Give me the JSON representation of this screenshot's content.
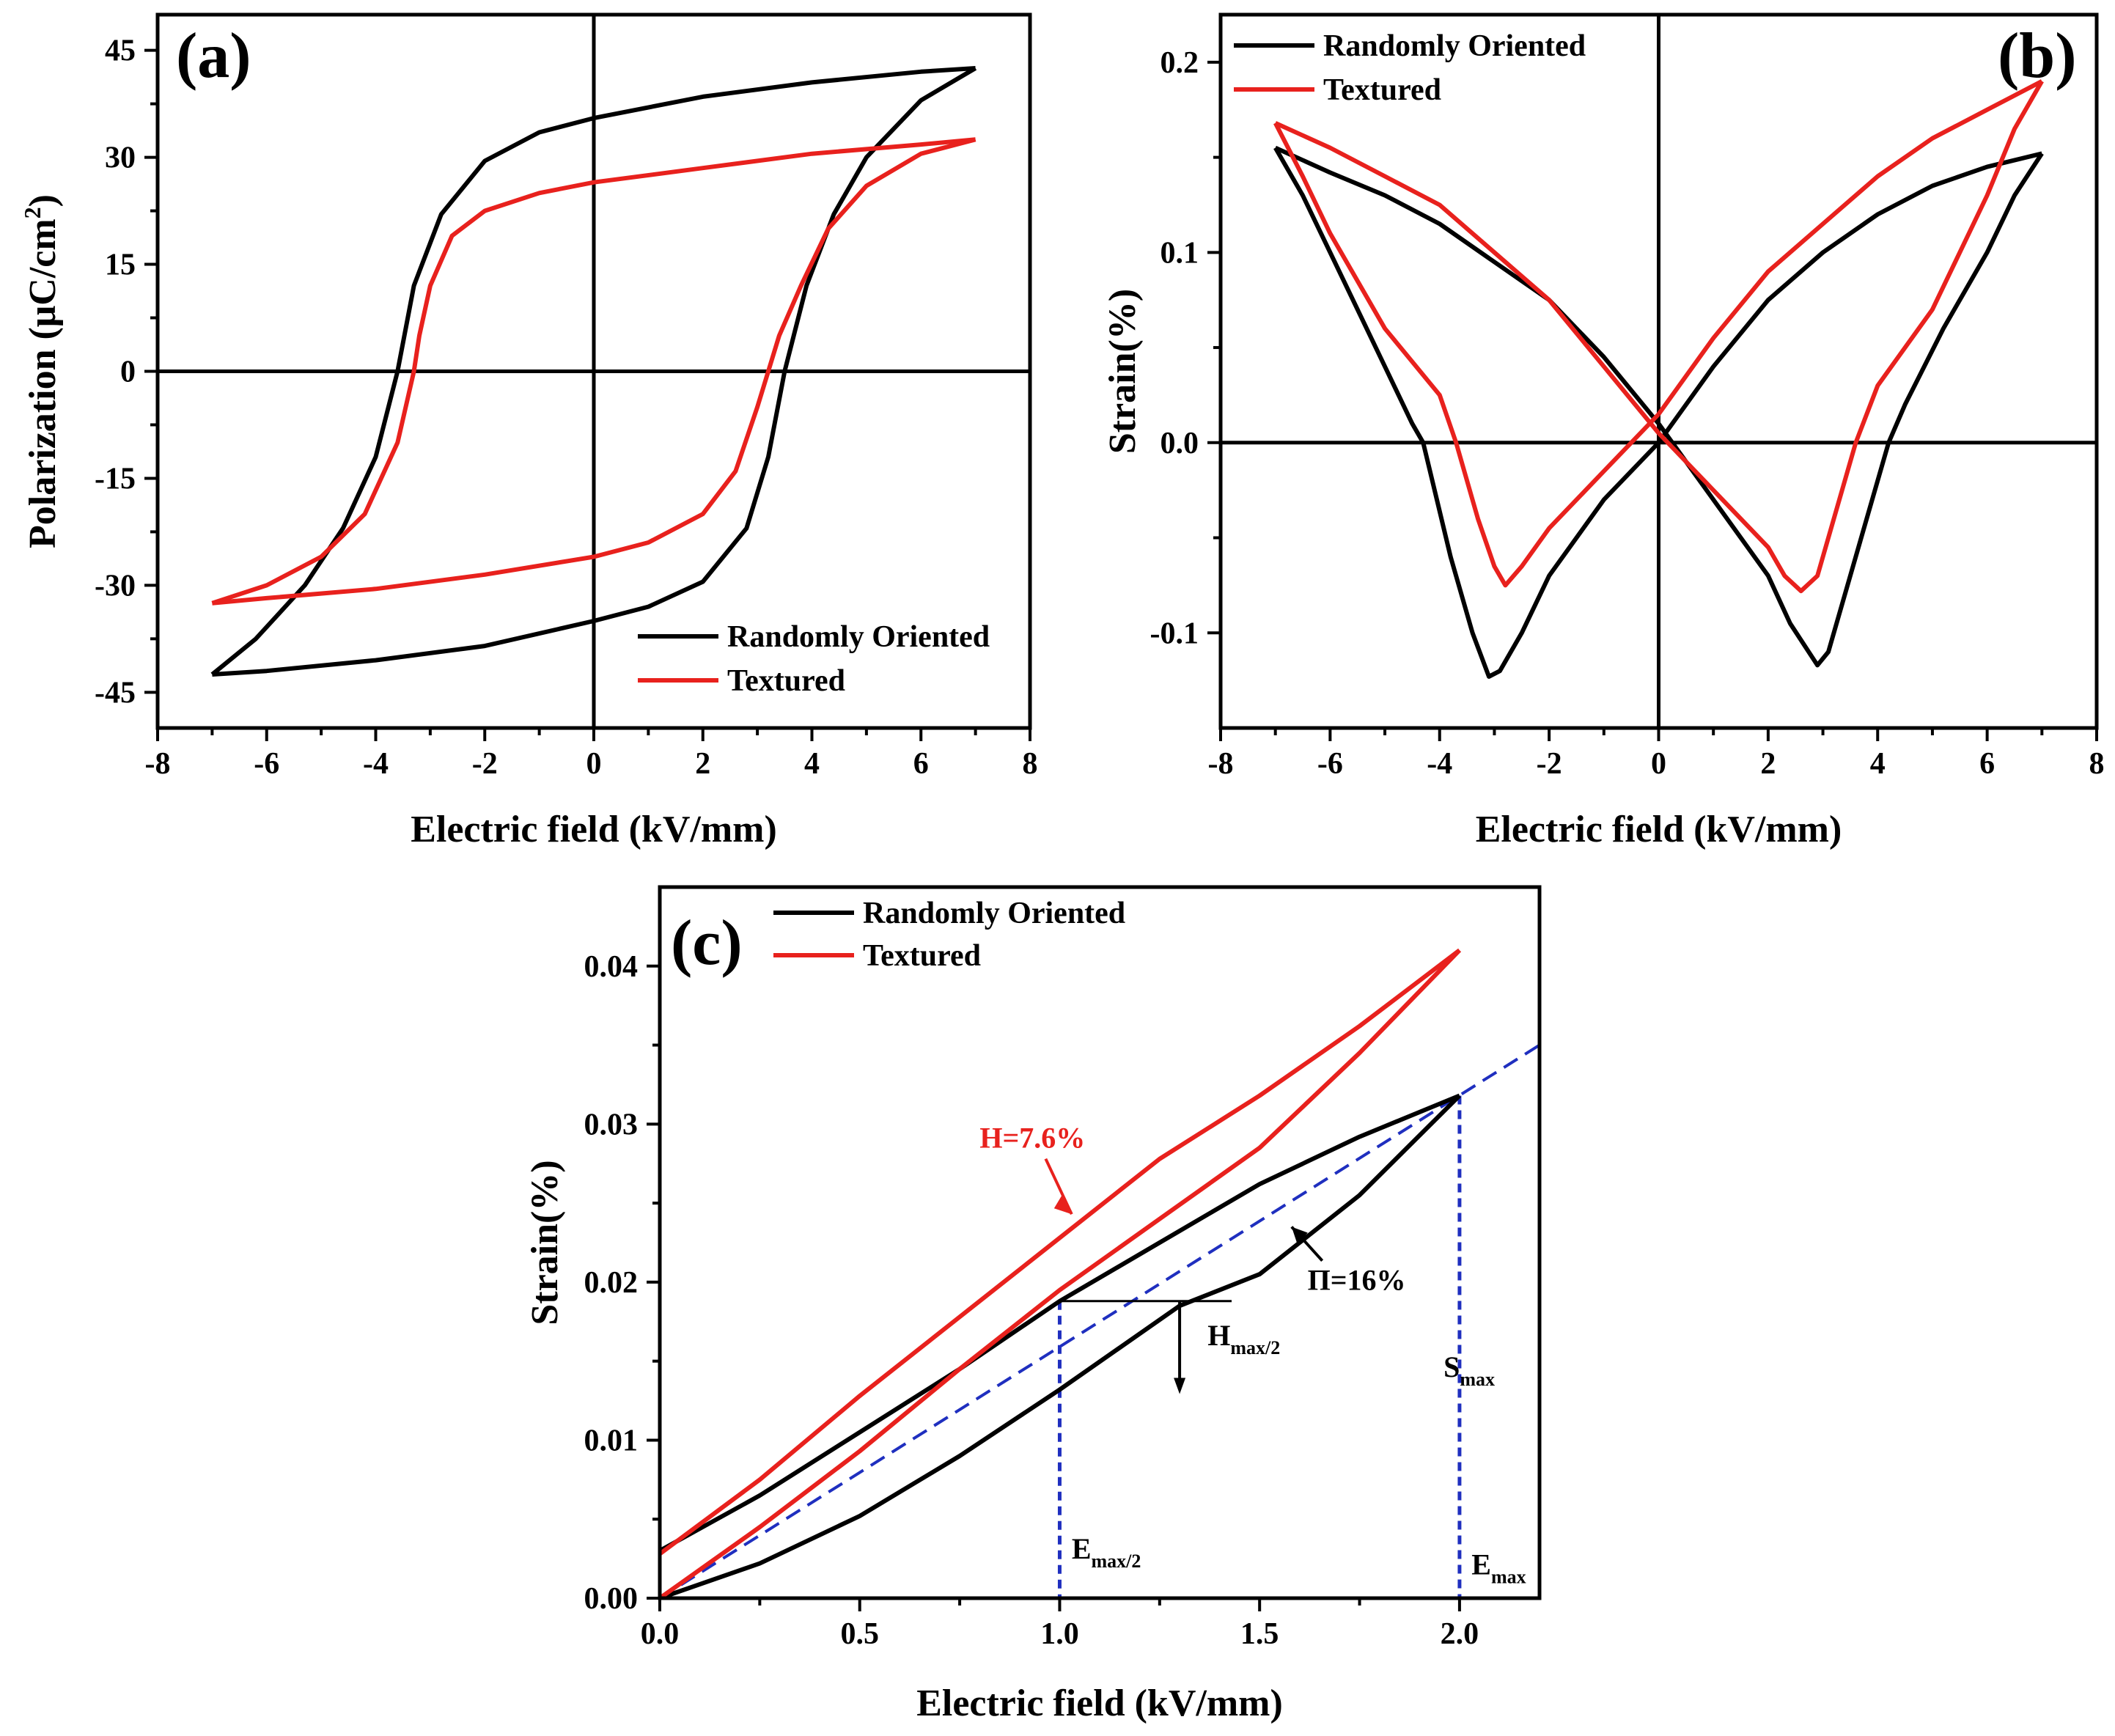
{
  "chart_data": [
    {
      "id": "a",
      "panel_label": "(a)",
      "type": "line",
      "xlabel": "Electric field (kV/mm)",
      "ylabel_main": "Polarization (μC/cm",
      "ylabel_sup": "2",
      "ylabel_end": ")",
      "xlim": [
        -8,
        8
      ],
      "ylim": [
        -50,
        50
      ],
      "xticks": [
        -8,
        -6,
        -4,
        -2,
        0,
        2,
        4,
        6,
        8
      ],
      "xtick_labels": [
        "-8",
        "-6",
        "-4",
        "-2",
        "0",
        "2",
        "4",
        "6",
        "8"
      ],
      "yticks": [
        -45,
        -30,
        -15,
        0,
        15,
        30,
        45
      ],
      "ytick_labels": [
        "-45",
        "-30",
        "-15",
        "0",
        "15",
        "30",
        "45"
      ],
      "zero_lines": true,
      "legend_position": "bottom-right",
      "series": [
        {
          "name": "Randomly Oriented",
          "color": "#000000",
          "branch_upper": [
            [
              7,
              42.5
            ],
            [
              6,
              42
            ],
            [
              4,
              40.5
            ],
            [
              2,
              38.5
            ],
            [
              0,
              35.5
            ],
            [
              -1,
              33.5
            ],
            [
              -2,
              29.5
            ],
            [
              -2.8,
              22
            ],
            [
              -3.3,
              12
            ],
            [
              -3.6,
              0
            ],
            [
              -4,
              -12
            ],
            [
              -4.6,
              -22
            ],
            [
              -5.3,
              -30
            ],
            [
              -6.2,
              -37.5
            ],
            [
              -7,
              -42.5
            ]
          ],
          "branch_lower": [
            [
              -7,
              -42.5
            ],
            [
              -6,
              -42
            ],
            [
              -4,
              -40.5
            ],
            [
              -2,
              -38.5
            ],
            [
              0,
              -35
            ],
            [
              1,
              -33
            ],
            [
              2,
              -29.5
            ],
            [
              2.8,
              -22
            ],
            [
              3.2,
              -12
            ],
            [
              3.5,
              0
            ],
            [
              3.9,
              12
            ],
            [
              4.4,
              22
            ],
            [
              5,
              30
            ],
            [
              6,
              38
            ],
            [
              7,
              42.5
            ]
          ]
        },
        {
          "name": "Textured",
          "color": "#e8211d",
          "branch_upper": [
            [
              7,
              32.5
            ],
            [
              6,
              31.8
            ],
            [
              4,
              30.5
            ],
            [
              2,
              28.5
            ],
            [
              0,
              26.5
            ],
            [
              -1,
              25
            ],
            [
              -2,
              22.5
            ],
            [
              -2.6,
              19
            ],
            [
              -3,
              12
            ],
            [
              -3.2,
              5
            ],
            [
              -3.3,
              0
            ],
            [
              -3.6,
              -10
            ],
            [
              -4.2,
              -20
            ],
            [
              -5,
              -26
            ],
            [
              -6,
              -30
            ],
            [
              -7,
              -32.5
            ]
          ],
          "branch_lower": [
            [
              -7,
              -32.5
            ],
            [
              -6,
              -31.8
            ],
            [
              -4,
              -30.5
            ],
            [
              -2,
              -28.5
            ],
            [
              0,
              -26
            ],
            [
              1,
              -24
            ],
            [
              2,
              -20
            ],
            [
              2.6,
              -14
            ],
            [
              3,
              -5
            ],
            [
              3.2,
              0
            ],
            [
              3.4,
              5
            ],
            [
              3.8,
              12
            ],
            [
              4.3,
              20
            ],
            [
              5,
              26
            ],
            [
              6,
              30.5
            ],
            [
              7,
              32.5
            ]
          ]
        }
      ]
    },
    {
      "id": "b",
      "panel_label": "(b)",
      "type": "line",
      "xlabel": "Electric field (kV/mm)",
      "ylabel": "Strain(%)",
      "xlim": [
        -8,
        8
      ],
      "ylim": [
        -0.15,
        0.225
      ],
      "xticks": [
        -8,
        -6,
        -4,
        -2,
        0,
        2,
        4,
        6,
        8
      ],
      "xtick_labels": [
        "-8",
        "-6",
        "-4",
        "-2",
        "0",
        "2",
        "4",
        "6",
        "8"
      ],
      "yticks": [
        -0.1,
        0.0,
        0.1,
        0.2
      ],
      "ytick_labels": [
        "-0.1",
        "0.0",
        "0.1",
        "0.2"
      ],
      "zero_lines": true,
      "legend_position": "top-left",
      "series": [
        {
          "name": "Randomly Oriented",
          "color": "#000000",
          "branch_upper": [
            [
              0,
              0
            ],
            [
              1,
              0.04
            ],
            [
              2,
              0.075
            ],
            [
              3,
              0.1
            ],
            [
              4,
              0.12
            ],
            [
              5,
              0.135
            ],
            [
              6,
              0.145
            ],
            [
              7,
              0.152
            ]
          ],
          "branch_lower": [
            [
              7,
              0.152
            ],
            [
              6.5,
              0.13
            ],
            [
              6,
              0.1
            ],
            [
              5.2,
              0.06
            ],
            [
              4.5,
              0.02
            ],
            [
              4.2,
              0
            ],
            [
              3.8,
              -0.04
            ],
            [
              3.4,
              -0.08
            ],
            [
              3.1,
              -0.11
            ],
            [
              2.9,
              -0.117
            ],
            [
              2.4,
              -0.095
            ],
            [
              2,
              -0.07
            ],
            [
              1,
              -0.03
            ],
            [
              0,
              0.01
            ]
          ],
          "branch_neg_upper": [
            [
              0,
              0.01
            ],
            [
              -1,
              0.045
            ],
            [
              -2,
              0.075
            ],
            [
              -3,
              0.095
            ],
            [
              -4,
              0.115
            ],
            [
              -5,
              0.13
            ],
            [
              -6,
              0.142
            ],
            [
              -7,
              0.155
            ]
          ],
          "branch_neg_lower": [
            [
              -7,
              0.155
            ],
            [
              -6.5,
              0.13
            ],
            [
              -6,
              0.1
            ],
            [
              -5,
              0.04
            ],
            [
              -4.5,
              0.01
            ],
            [
              -4.3,
              0
            ],
            [
              -3.8,
              -0.06
            ],
            [
              -3.4,
              -0.1
            ],
            [
              -3.1,
              -0.123
            ],
            [
              -2.9,
              -0.12
            ],
            [
              -2.5,
              -0.1
            ],
            [
              -2,
              -0.07
            ],
            [
              -1,
              -0.03
            ],
            [
              0,
              0
            ]
          ]
        },
        {
          "name": "Textured",
          "color": "#e8211d",
          "branch_upper": [
            [
              0,
              0.015
            ],
            [
              1,
              0.055
            ],
            [
              2,
              0.09
            ],
            [
              3,
              0.115
            ],
            [
              4,
              0.14
            ],
            [
              5,
              0.16
            ],
            [
              6,
              0.175
            ],
            [
              7,
              0.19
            ]
          ],
          "branch_lower": [
            [
              7,
              0.19
            ],
            [
              6.5,
              0.165
            ],
            [
              6,
              0.13
            ],
            [
              5,
              0.07
            ],
            [
              4,
              0.03
            ],
            [
              3.6,
              0
            ],
            [
              3.2,
              -0.04
            ],
            [
              2.9,
              -0.07
            ],
            [
              2.6,
              -0.078
            ],
            [
              2.3,
              -0.07
            ],
            [
              2,
              -0.055
            ],
            [
              1,
              -0.025
            ],
            [
              0,
              0.005
            ]
          ],
          "branch_neg_upper": [
            [
              0,
              0.005
            ],
            [
              -1,
              0.04
            ],
            [
              -2,
              0.075
            ],
            [
              -3,
              0.1
            ],
            [
              -4,
              0.125
            ],
            [
              -5,
              0.14
            ],
            [
              -6,
              0.155
            ],
            [
              -7,
              0.168
            ]
          ],
          "branch_neg_lower": [
            [
              -7,
              0.168
            ],
            [
              -6.5,
              0.14
            ],
            [
              -6,
              0.11
            ],
            [
              -5,
              0.06
            ],
            [
              -4,
              0.025
            ],
            [
              -3.7,
              0
            ],
            [
              -3.3,
              -0.04
            ],
            [
              -3,
              -0.065
            ],
            [
              -2.8,
              -0.075
            ],
            [
              -2.5,
              -0.065
            ],
            [
              -2,
              -0.045
            ],
            [
              -1,
              -0.015
            ],
            [
              0,
              0.015
            ]
          ]
        }
      ]
    },
    {
      "id": "c",
      "panel_label": "(c)",
      "type": "line",
      "xlabel": "Electric field (kV/mm)",
      "ylabel": "Strain(%)",
      "xlim": [
        0,
        2.2
      ],
      "ylim": [
        0,
        0.045
      ],
      "xticks": [
        0,
        0.5,
        1.0,
        1.5,
        2.0
      ],
      "xtick_labels": [
        "0.0",
        "0.5",
        "1.0",
        "1.5",
        "2.0"
      ],
      "yticks": [
        0,
        0.01,
        0.02,
        0.03,
        0.04
      ],
      "ytick_labels": [
        "0.00",
        "0.01",
        "0.02",
        "0.03",
        "0.04"
      ],
      "legend_position": "top-left",
      "series": [
        {
          "name": "Randomly Oriented",
          "color": "#000000",
          "branch_upper": [
            [
              0,
              0.003
            ],
            [
              0.25,
              0.0065
            ],
            [
              0.5,
              0.0105
            ],
            [
              0.75,
              0.0145
            ],
            [
              1,
              0.0188
            ],
            [
              1.25,
              0.0225
            ],
            [
              1.5,
              0.0262
            ],
            [
              1.75,
              0.0292
            ],
            [
              2,
              0.0318
            ]
          ],
          "branch_lower": [
            [
              2,
              0.0318
            ],
            [
              1.75,
              0.0255
            ],
            [
              1.5,
              0.0205
            ],
            [
              1.3,
              0.0185
            ],
            [
              1,
              0.0132
            ],
            [
              0.75,
              0.009
            ],
            [
              0.5,
              0.0052
            ],
            [
              0.25,
              0.0022
            ],
            [
              0,
              0
            ]
          ]
        },
        {
          "name": "Textured",
          "color": "#e8211d",
          "branch_upper": [
            [
              0,
              0.0028
            ],
            [
              0.25,
              0.0075
            ],
            [
              0.5,
              0.0128
            ],
            [
              0.75,
              0.0178
            ],
            [
              1,
              0.0228
            ],
            [
              1.25,
              0.0278
            ],
            [
              1.5,
              0.0318
            ],
            [
              1.75,
              0.0362
            ],
            [
              2,
              0.041
            ]
          ],
          "branch_lower": [
            [
              2,
              0.041
            ],
            [
              1.75,
              0.0345
            ],
            [
              1.5,
              0.0285
            ],
            [
              1.25,
              0.024
            ],
            [
              1,
              0.0195
            ],
            [
              0.75,
              0.0145
            ],
            [
              0.5,
              0.0093
            ],
            [
              0.25,
              0.0045
            ],
            [
              0,
              0
            ]
          ]
        }
      ],
      "reference_line": {
        "from": [
          0,
          0
        ],
        "to": [
          2.2,
          0.035
        ],
        "color": "#1f2fbf",
        "style": "dashed"
      },
      "vertical_markers": [
        {
          "x": 1.0,
          "y_top": 0.0188,
          "color": "#1f2fbf"
        },
        {
          "x": 2.0,
          "y_top": 0.0318,
          "color": "#1f2fbf"
        }
      ],
      "hline": {
        "x_from": 1.0,
        "x_to": 1.43,
        "y": 0.0188
      },
      "down_arrow": {
        "x": 1.3,
        "y_from": 0.0188,
        "y_to": 0.0132
      },
      "annotations": {
        "h_red": {
          "text": "H=7.6%",
          "color": "#e8211d",
          "x": 0.8,
          "y": 0.0285,
          "arrow_to": [
            1.03,
            0.0243
          ]
        },
        "pi": {
          "text": "Π=16%",
          "x": 1.62,
          "y": 0.0195,
          "arrow_to": [
            1.58,
            0.0235
          ]
        },
        "hmax2": {
          "main": "H",
          "sub": "max/2",
          "x": 1.37,
          "y": 0.016
        },
        "smax": {
          "main": "S",
          "sub": "max",
          "x": 1.96,
          "y": 0.014
        },
        "emax2": {
          "main": "E",
          "sub": "max/2",
          "x": 1.03,
          "y": 0.0025
        },
        "emax": {
          "main": "E",
          "sub": "max",
          "x": 2.03,
          "y": 0.0015
        }
      }
    }
  ]
}
